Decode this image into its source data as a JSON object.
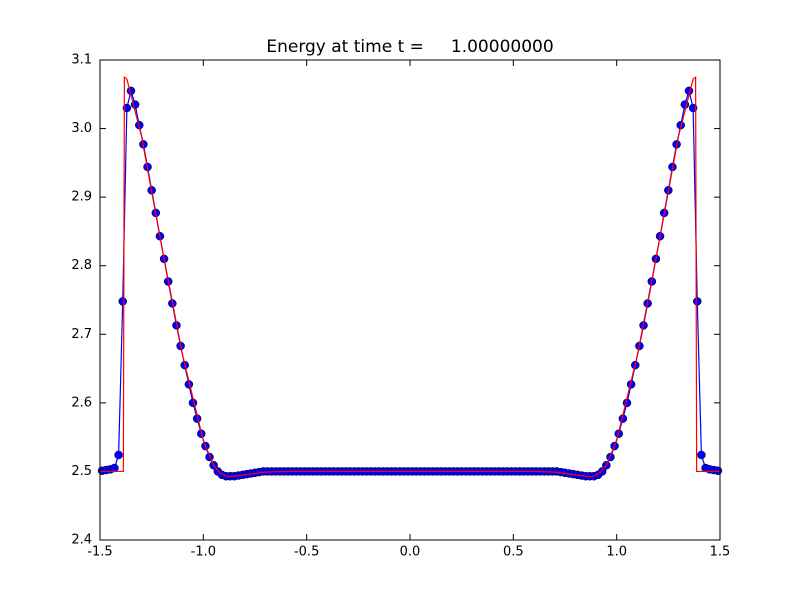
{
  "chart_data": {
    "type": "line",
    "title": "Energy at time t =     1.00000000",
    "xlim": [
      -1.5,
      1.5
    ],
    "ylim": [
      2.4,
      3.1
    ],
    "xticks": [
      -1.5,
      {
        "value": -1.0,
        "label": "-1.0"
      },
      -0.5,
      {
        "value": 0,
        "label": "0.0"
      },
      0.5,
      {
        "value": 1,
        "label": "1.0"
      },
      1.5
    ],
    "yticks": [
      2.4,
      2.5,
      2.6,
      2.7,
      2.8,
      2.9,
      {
        "value": 3,
        "label": "3.0"
      },
      3.1
    ],
    "series": [
      {
        "color": "#0000ff",
        "markers": true,
        "x": [
          -1.49,
          -1.47,
          -1.45,
          -1.43,
          -1.41,
          -1.39,
          -1.37,
          -1.35,
          -1.33,
          -1.31,
          -1.29,
          -1.27,
          -1.25,
          -1.23,
          -1.21,
          -1.19,
          -1.17,
          -1.15,
          -1.13,
          -1.11,
          -1.09,
          -1.07,
          -1.05,
          -1.03,
          -1.01,
          -0.99,
          -0.97,
          -0.95,
          -0.93,
          -0.91,
          -0.89,
          -0.87,
          -0.85,
          -0.83,
          -0.81,
          -0.79,
          -0.77,
          -0.75,
          -0.73,
          -0.71,
          -0.69,
          -0.67,
          -0.65,
          -0.63,
          -0.61,
          -0.59,
          -0.57,
          -0.55,
          -0.53,
          -0.51,
          -0.49,
          -0.47,
          -0.45,
          -0.43,
          -0.41,
          -0.39,
          -0.37,
          -0.35,
          -0.33,
          -0.31,
          -0.29,
          -0.27,
          -0.25,
          -0.23,
          -0.21,
          -0.19,
          -0.17,
          -0.15,
          -0.13,
          -0.11,
          -0.09,
          -0.07,
          -0.05,
          -0.03,
          -0.01,
          0.01,
          0.03,
          0.05,
          0.07,
          0.09,
          0.11,
          0.13,
          0.15,
          0.17,
          0.19,
          0.21,
          0.23,
          0.25,
          0.27,
          0.29,
          0.31,
          0.33,
          0.35,
          0.37,
          0.39,
          0.41,
          0.43,
          0.45,
          0.47,
          0.49,
          0.51,
          0.53,
          0.55,
          0.57,
          0.59,
          0.61,
          0.63,
          0.65,
          0.67,
          0.69,
          0.71,
          0.73,
          0.75,
          0.77,
          0.79,
          0.81,
          0.83,
          0.85,
          0.87,
          0.89,
          0.91,
          0.93,
          0.95,
          0.97,
          0.99,
          1.01,
          1.03,
          1.05,
          1.07,
          1.09,
          1.11,
          1.13,
          1.15,
          1.17,
          1.19,
          1.21,
          1.23,
          1.25,
          1.27,
          1.29,
          1.31,
          1.33,
          1.35,
          1.37,
          1.39,
          1.41,
          1.43,
          1.45,
          1.47,
          1.49
        ],
        "values": [
          2.501,
          2.502,
          2.503,
          2.505,
          2.524,
          2.748,
          3.03,
          3.055,
          3.035,
          3.005,
          2.977,
          2.944,
          2.91,
          2.877,
          2.843,
          2.81,
          2.777,
          2.745,
          2.713,
          2.683,
          2.655,
          2.627,
          2.6,
          2.577,
          2.555,
          2.537,
          2.521,
          2.509,
          2.5,
          2.495,
          2.493,
          2.493,
          2.493,
          2.494,
          2.495,
          2.496,
          2.497,
          2.498,
          2.499,
          2.5,
          2.5,
          2.5,
          2.5,
          2.5,
          2.5,
          2.5,
          2.5,
          2.5,
          2.5,
          2.5,
          2.5,
          2.5,
          2.5,
          2.5,
          2.5,
          2.5,
          2.5,
          2.5,
          2.5,
          2.5,
          2.5,
          2.5,
          2.5,
          2.5,
          2.5,
          2.5,
          2.5,
          2.5,
          2.5,
          2.5,
          2.5,
          2.5,
          2.5,
          2.5,
          2.5,
          2.5,
          2.5,
          2.5,
          2.5,
          2.5,
          2.5,
          2.5,
          2.5,
          2.5,
          2.5,
          2.5,
          2.5,
          2.5,
          2.5,
          2.5,
          2.5,
          2.5,
          2.5,
          2.5,
          2.5,
          2.5,
          2.5,
          2.5,
          2.5,
          2.5,
          2.5,
          2.5,
          2.5,
          2.5,
          2.5,
          2.5,
          2.5,
          2.5,
          2.5,
          2.5,
          2.5,
          2.499,
          2.498,
          2.497,
          2.496,
          2.495,
          2.494,
          2.493,
          2.493,
          2.493,
          2.495,
          2.5,
          2.509,
          2.521,
          2.537,
          2.555,
          2.577,
          2.6,
          2.627,
          2.655,
          2.683,
          2.713,
          2.745,
          2.777,
          2.81,
          2.843,
          2.877,
          2.91,
          2.944,
          2.977,
          3.005,
          3.035,
          3.055,
          3.03,
          2.748,
          2.524,
          2.505,
          2.503,
          2.502,
          2.501
        ]
      },
      {
        "color": "#ff0000",
        "markers": false,
        "x": [
          -1.5,
          -1.387,
          -1.382,
          -1.37,
          -1.355,
          -1.33,
          -1.3,
          -1.2,
          -1.1,
          -1.0,
          -0.95,
          -0.92,
          -0.88,
          -0.8,
          -0.7,
          -0.6,
          0,
          0.6,
          0.7,
          0.8,
          0.88,
          0.92,
          0.95,
          1.0,
          1.1,
          1.2,
          1.3,
          1.33,
          1.355,
          1.37,
          1.382,
          1.387,
          1.5
        ],
        "values": [
          2.5,
          2.5,
          3.075,
          3.072,
          3.055,
          3.025,
          2.99,
          2.826,
          2.669,
          2.545,
          2.509,
          2.498,
          2.492,
          2.495,
          2.499,
          2.5,
          2.5,
          2.5,
          2.499,
          2.495,
          2.492,
          2.498,
          2.509,
          2.545,
          2.669,
          2.826,
          2.99,
          3.025,
          3.055,
          3.072,
          3.075,
          2.5,
          2.5
        ]
      }
    ]
  }
}
